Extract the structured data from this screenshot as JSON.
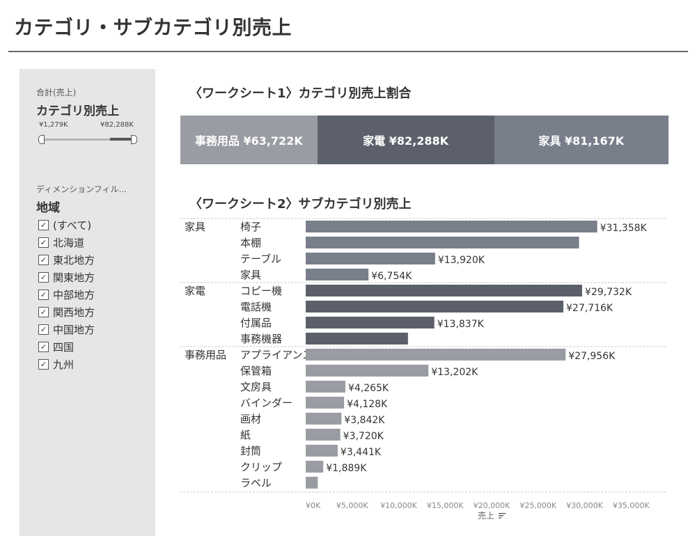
{
  "title": "カテゴリ・サブカテゴリ別売上",
  "sidebar": {
    "param_small": "合計(売上)",
    "param_big": "カテゴリ別売上",
    "range_min": "¥1,279K",
    "range_max": "¥82,288K",
    "slider_value": [
      0.0,
      0.75
    ],
    "dimension_label": "ディメンションフィル...",
    "dimension_title": "地域",
    "filter_items": [
      {
        "label": "(すべて)",
        "checked": true
      },
      {
        "label": "北海道",
        "checked": true
      },
      {
        "label": "東北地方",
        "checked": true
      },
      {
        "label": "関東地方",
        "checked": true
      },
      {
        "label": "中部地方",
        "checked": true
      },
      {
        "label": "関西地方",
        "checked": true
      },
      {
        "label": "中国地方",
        "checked": true
      },
      {
        "label": "四国",
        "checked": true
      },
      {
        "label": "九州",
        "checked": true
      }
    ]
  },
  "worksheet1": {
    "title": "〈ワークシート1〉カテゴリ別売上割合"
  },
  "worksheet2": {
    "title": "〈ワークシート2〉サブカテゴリ別売上",
    "axis_title": "売上"
  },
  "colors": {
    "事務用品": "#9a9ca3",
    "家電": "#5c606b",
    "家具": "#797e8b",
    "background_sidebar": "#e6e6e6"
  },
  "chart_data": [
    {
      "type": "bar",
      "title": "〈ワークシート1〉カテゴリ別売上割合",
      "orientation": "stacked-horizontal",
      "categories": [
        "事務用品",
        "家電",
        "家具"
      ],
      "values": [
        63722,
        82288,
        81167
      ],
      "labels": [
        "事務用品 ¥63,722K",
        "家電 ¥82,288K",
        "家具 ¥81,167K"
      ]
    },
    {
      "type": "bar",
      "title": "〈ワークシート2〉サブカテゴリ別売上",
      "orientation": "horizontal",
      "xlabel": "売上",
      "xlim": [
        0,
        35000
      ],
      "x_ticks": [
        "¥0K",
        "¥5,000K",
        "¥10,000K",
        "¥15,000K",
        "¥20,000K",
        "¥25,000K",
        "¥30,000K",
        "¥35,000K"
      ],
      "groups": [
        {
          "category": "家具",
          "items": [
            {
              "name": "椅子",
              "value": 31358,
              "label": "¥31,358K"
            },
            {
              "name": "本棚",
              "value": 29400,
              "label": null
            },
            {
              "name": "テーブル",
              "value": 13920,
              "label": "¥13,920K"
            },
            {
              "name": "家具",
              "value": 6754,
              "label": "¥6,754K"
            }
          ]
        },
        {
          "category": "家電",
          "items": [
            {
              "name": "コピー機",
              "value": 29732,
              "label": "¥29,732K"
            },
            {
              "name": "電話機",
              "value": 27716,
              "label": "¥27,716K"
            },
            {
              "name": "付属品",
              "value": 13837,
              "label": "¥13,837K"
            },
            {
              "name": "事務機器",
              "value": 11000,
              "label": null
            }
          ]
        },
        {
          "category": "事務用品",
          "items": [
            {
              "name": "アプライアンス",
              "value": 27956,
              "label": "¥27,956K"
            },
            {
              "name": "保管箱",
              "value": 13202,
              "label": "¥13,202K"
            },
            {
              "name": "文房具",
              "value": 4265,
              "label": "¥4,265K"
            },
            {
              "name": "バインダー",
              "value": 4128,
              "label": "¥4,128K"
            },
            {
              "name": "画材",
              "value": 3842,
              "label": "¥3,842K"
            },
            {
              "name": "紙",
              "value": 3720,
              "label": "¥3,720K"
            },
            {
              "name": "封筒",
              "value": 3441,
              "label": "¥3,441K"
            },
            {
              "name": "クリップ",
              "value": 1889,
              "label": "¥1,889K"
            },
            {
              "name": "ラベル",
              "value": 1300,
              "label": null
            }
          ]
        }
      ]
    }
  ]
}
